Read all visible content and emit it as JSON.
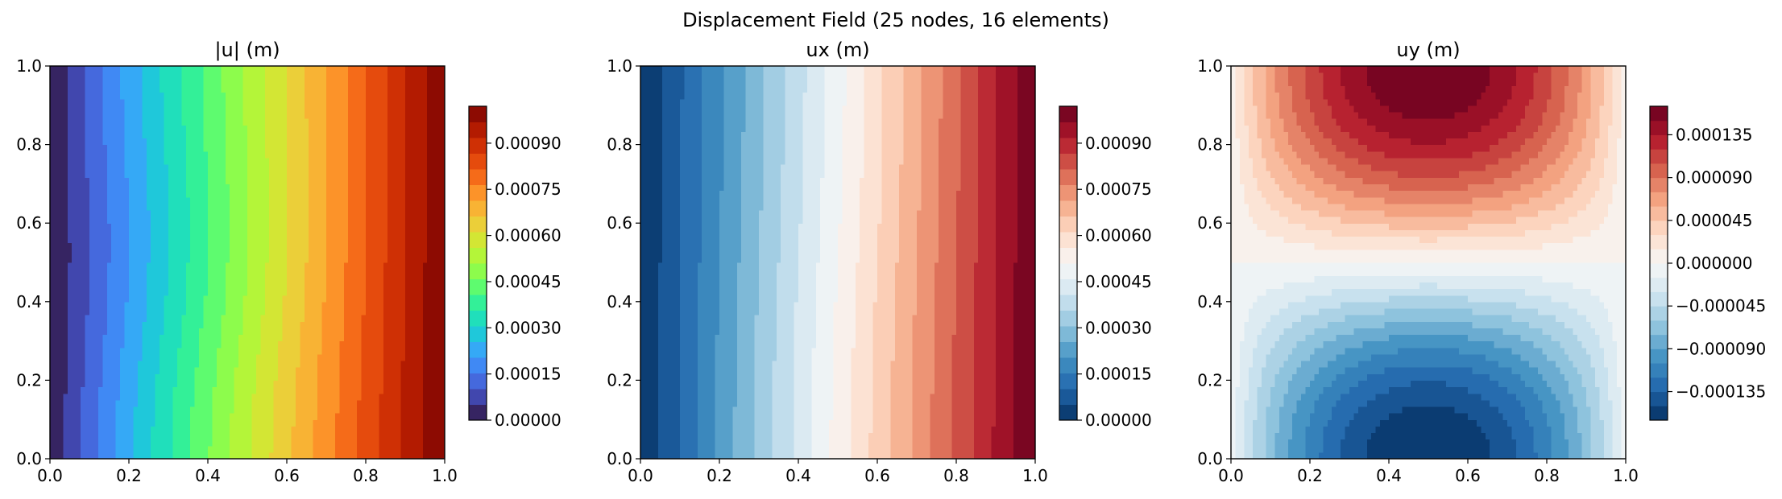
{
  "figure": {
    "title": "Displacement Field (25 nodes, 16 elements)"
  },
  "chart_data": [
    {
      "type": "heatmap",
      "title": "|u| (m)",
      "colormap": "turbo",
      "xlim": [
        0.0,
        1.0
      ],
      "ylim": [
        0.0,
        1.0
      ],
      "xticks": [
        "0.0",
        "0.2",
        "0.4",
        "0.6",
        "0.8",
        "1.0"
      ],
      "yticks": [
        "0.0",
        "0.2",
        "0.4",
        "0.6",
        "0.8",
        "1.0"
      ],
      "levels_min": 0.0,
      "levels_max": 0.00102,
      "level_count": 20,
      "colorbar_ticks": [
        "0.00000",
        "0.00015",
        "0.00030",
        "0.00045",
        "0.00060",
        "0.00075",
        "0.00090"
      ],
      "colorbar_tick_values": [
        0.0,
        0.00015,
        0.0003,
        0.00045,
        0.0006,
        0.00075,
        0.0009
      ]
    },
    {
      "type": "heatmap",
      "title": "ux (m)",
      "colormap": "RdBu_r",
      "xlim": [
        0.0,
        1.0
      ],
      "ylim": [
        0.0,
        1.0
      ],
      "xticks": [
        "0.0",
        "0.2",
        "0.4",
        "0.6",
        "0.8",
        "1.0"
      ],
      "yticks": [
        "0.0",
        "0.2",
        "0.4",
        "0.6",
        "0.8",
        "1.0"
      ],
      "levels_min": 0.0,
      "levels_max": 0.00102,
      "level_count": 20,
      "colorbar_ticks": [
        "0.00000",
        "0.00015",
        "0.00030",
        "0.00045",
        "0.00060",
        "0.00075",
        "0.00090"
      ],
      "colorbar_tick_values": [
        0.0,
        0.00015,
        0.0003,
        0.00045,
        0.0006,
        0.00075,
        0.0009
      ]
    },
    {
      "type": "heatmap",
      "title": "uy (m)",
      "colormap": "RdBu_r",
      "xlim": [
        0.0,
        1.0
      ],
      "ylim": [
        0.0,
        1.0
      ],
      "xticks": [
        "0.0",
        "0.2",
        "0.4",
        "0.6",
        "0.8",
        "1.0"
      ],
      "yticks": [
        "0.0",
        "0.2",
        "0.4",
        "0.6",
        "0.8",
        "1.0"
      ],
      "levels_min": -0.000165,
      "levels_max": 0.000165,
      "level_count": 22,
      "colorbar_ticks": [
        "−0.000135",
        "−0.000090",
        "−0.000045",
        "0.000000",
        "0.000045",
        "0.000090",
        "0.000135"
      ],
      "colorbar_tick_values": [
        -0.000135,
        -9e-05,
        -4.5e-05,
        0.0,
        4.5e-05,
        9e-05,
        0.000135
      ]
    }
  ]
}
